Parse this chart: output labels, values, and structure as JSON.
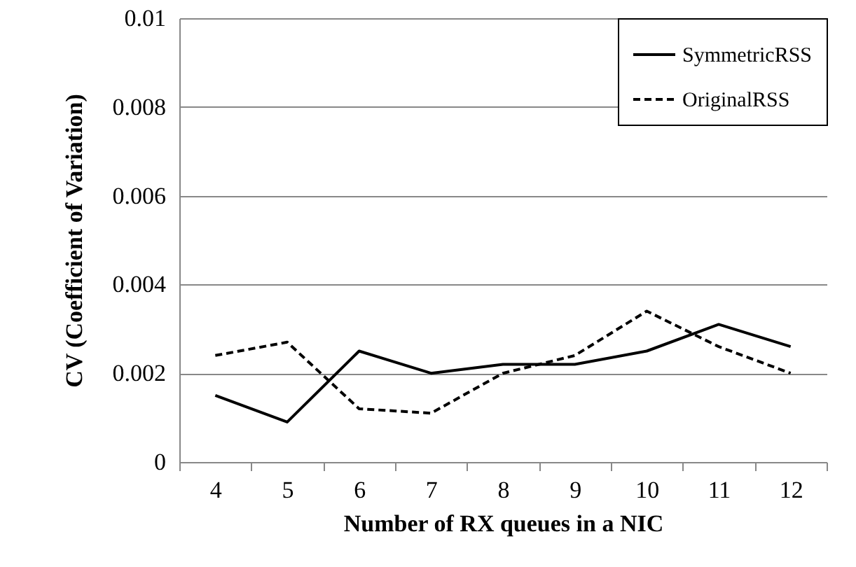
{
  "chart_data": {
    "type": "line",
    "xlabel": "Number of RX queues in a NIC",
    "ylabel": "CV (Coefficient of Variation)",
    "categories": [
      "4",
      "5",
      "6",
      "7",
      "8",
      "9",
      "10",
      "11",
      "12"
    ],
    "series": [
      {
        "name": "SymmetricRSS",
        "color": "#000000",
        "line_style": "solid",
        "values": [
          0.0015,
          0.0009,
          0.0025,
          0.002,
          0.0022,
          0.0022,
          0.0025,
          0.0031,
          0.0026
        ]
      },
      {
        "name": "OriginalRSS",
        "color": "#000000",
        "line_style": "dashed",
        "values": [
          0.0024,
          0.0027,
          0.0012,
          0.0011,
          0.002,
          0.0024,
          0.0034,
          0.0026,
          0.002
        ]
      }
    ],
    "ylim": [
      0,
      0.01
    ],
    "yticks": [
      0,
      0.002,
      0.004,
      0.006,
      0.008,
      0.01
    ],
    "grid": "y",
    "legend": "top right"
  }
}
